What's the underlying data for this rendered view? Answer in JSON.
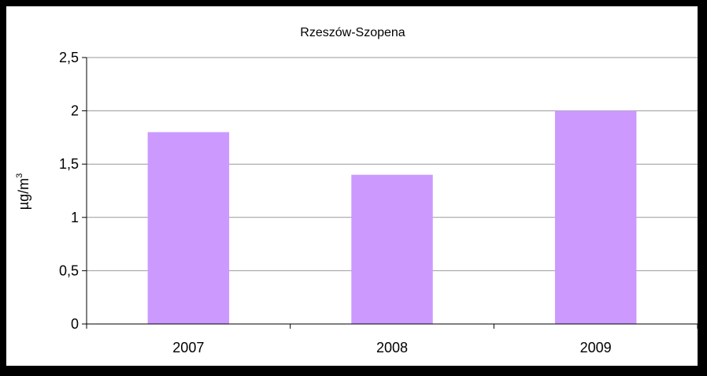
{
  "chart_data": {
    "type": "bar",
    "title": "Rzeszów-Szopena",
    "xlabel": "",
    "ylabel": "µg/m",
    "ylabel_superscript": "3",
    "categories": [
      "2007",
      "2008",
      "2009"
    ],
    "values": [
      1.8,
      1.4,
      2.0
    ],
    "ylim": [
      0,
      2.5
    ],
    "yticks": [
      {
        "value": 0,
        "label": "0"
      },
      {
        "value": 0.5,
        "label": "0,5"
      },
      {
        "value": 1,
        "label": "1"
      },
      {
        "value": 1.5,
        "label": "1,5"
      },
      {
        "value": 2,
        "label": "2"
      },
      {
        "value": 2.5,
        "label": "2,5"
      }
    ],
    "grid": true,
    "legend": "none",
    "bar_color": "#cc99ff",
    "background": "#ffffff",
    "border_color": "#000000",
    "gridline_color": "#999999"
  }
}
